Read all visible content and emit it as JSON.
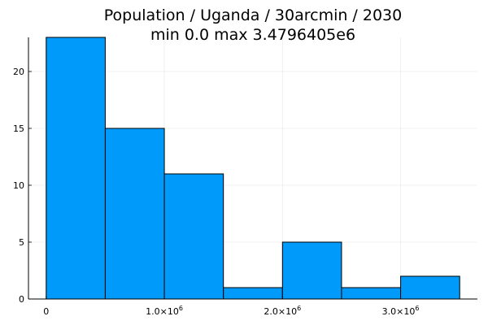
{
  "chart_data": {
    "type": "bar",
    "title": "Population / Uganda / 30arcmin / 2030",
    "subtitle": "min 0.0  max 3.4796405e6",
    "xlabel": "",
    "ylabel": "",
    "bins": [
      {
        "x0": 0,
        "x1": 500000,
        "value": 23
      },
      {
        "x0": 500000,
        "x1": 1000000,
        "value": 15
      },
      {
        "x0": 1000000,
        "x1": 1500000,
        "value": 11
      },
      {
        "x0": 1500000,
        "x1": 2000000,
        "value": 1
      },
      {
        "x0": 2000000,
        "x1": 2500000,
        "value": 5
      },
      {
        "x0": 2500000,
        "x1": 3000000,
        "value": 1
      },
      {
        "x0": 3000000,
        "x1": 3500000,
        "value": 2
      }
    ],
    "xlim": [
      -150000,
      3650000
    ],
    "ylim": [
      0,
      23
    ],
    "xticks": [
      {
        "value": 0,
        "label": "0",
        "sup": ""
      },
      {
        "value": 1000000,
        "label": "1.0×10",
        "sup": "6"
      },
      {
        "value": 2000000,
        "label": "2.0×10",
        "sup": "6"
      },
      {
        "value": 3000000,
        "label": "3.0×10",
        "sup": "6"
      }
    ],
    "yticks": [
      {
        "value": 0,
        "label": "0"
      },
      {
        "value": 5,
        "label": "5"
      },
      {
        "value": 10,
        "label": "10"
      },
      {
        "value": 15,
        "label": "15"
      },
      {
        "value": 20,
        "label": "20"
      }
    ],
    "grid": true,
    "legend": "none",
    "bar_color": "#009AFA",
    "edge_color": "#000000"
  }
}
